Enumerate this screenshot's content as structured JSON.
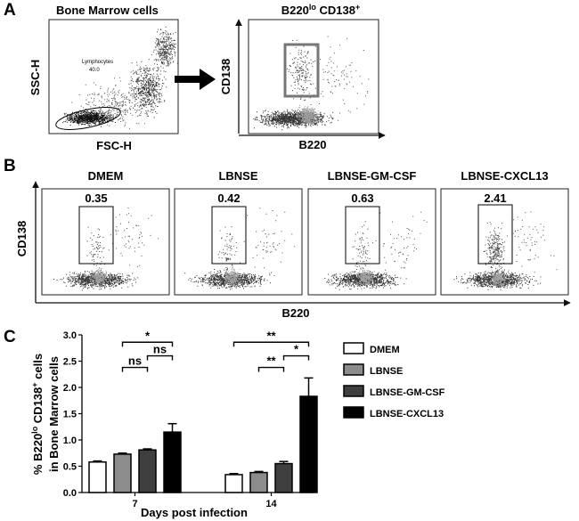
{
  "panels": {
    "a": "A",
    "b": "B",
    "c": "C"
  },
  "panel_a": {
    "left_title": "Bone Marrow  cells",
    "right_title_base": "B220",
    "right_title_sup1": "lo",
    "right_title_mid": " CD138",
    "right_title_sup2": "+",
    "left_ylabel": "SSC-H",
    "left_xlabel": "FSC-H",
    "gate_label": "Lymphocytes",
    "gate_value": "40.0",
    "right_ylabel": "CD138",
    "right_xlabel": "B220"
  },
  "panel_b": {
    "ylabel": "CD138",
    "xlabel": "B220",
    "plots": [
      {
        "title": "DMEM",
        "value": "0.35"
      },
      {
        "title": "LBNSE",
        "value": "0.42"
      },
      {
        "title": "LBNSE-GM-CSF",
        "value": "0.63"
      },
      {
        "title": "LBNSE-CXCL13",
        "value": "2.41"
      }
    ]
  },
  "chart_data": {
    "type": "bar",
    "ylabel_line1_pre": "% B220",
    "ylabel_line1_sup1": "lo",
    "ylabel_line1_mid": " CD138",
    "ylabel_line1_sup2": "+",
    "ylabel_line1_post": " cells",
    "ylabel_line2": "in Bone Marrow cells",
    "xlabel": "Days post infection",
    "categories": [
      "7",
      "14"
    ],
    "ylim": [
      0,
      3.0
    ],
    "yticks": [
      "0.0",
      "0.5",
      "1.0",
      "1.5",
      "2.0",
      "2.5",
      "3.0"
    ],
    "series": [
      {
        "name": "DMEM",
        "color": "#ffffff",
        "values": [
          0.58,
          0.34
        ],
        "errors": [
          0.02,
          0.02
        ]
      },
      {
        "name": "LBNSE",
        "color": "#8c8c8c",
        "values": [
          0.73,
          0.38
        ],
        "errors": [
          0.02,
          0.02
        ]
      },
      {
        "name": "LBNSE-GM-CSF",
        "color": "#3f3f3f",
        "values": [
          0.81,
          0.55
        ],
        "errors": [
          0.02,
          0.04
        ]
      },
      {
        "name": "LBNSE-CXCL13",
        "color": "#000000",
        "values": [
          1.15,
          1.83
        ],
        "errors": [
          0.16,
          0.35
        ]
      }
    ],
    "significance": [
      {
        "group": 0,
        "from": 1,
        "to": 2,
        "label": "ns",
        "level": 2.38
      },
      {
        "group": 0,
        "from": 2,
        "to": 3,
        "label": "ns",
        "level": 2.6
      },
      {
        "group": 0,
        "from": 1,
        "to": 3,
        "label": "*",
        "level": 2.86
      },
      {
        "group": 1,
        "from": 1,
        "to": 2,
        "label": "**",
        "level": 2.38
      },
      {
        "group": 1,
        "from": 2,
        "to": 3,
        "label": "*",
        "level": 2.6
      },
      {
        "group": 1,
        "from": 0,
        "to": 3,
        "label": "**",
        "level": 2.86
      }
    ],
    "legend_position": "right"
  }
}
